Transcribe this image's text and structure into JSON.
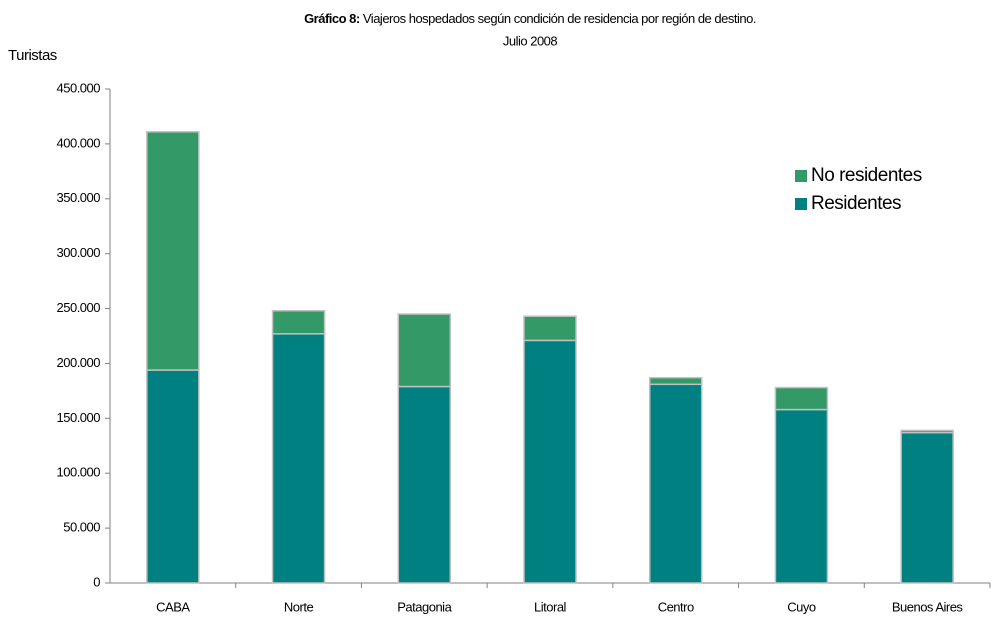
{
  "chart_data": {
    "type": "bar",
    "stacked": true,
    "title": {
      "label": "Gráfico 8:",
      "text": "Viajeros hospedados según condición de residencia por región de destino."
    },
    "subtitle": "Julio 2008",
    "y_label": "Turistas",
    "categories": [
      "CABA",
      "Norte",
      "Patagonia",
      "Litoral",
      "Centro",
      "Cuyo",
      "Buenos Aires"
    ],
    "series": [
      {
        "name": "Residentes",
        "color": "#008080",
        "values": [
          194000,
          227000,
          179000,
          221000,
          181000,
          158000,
          137000
        ]
      },
      {
        "name": "No residentes",
        "color": "#339966",
        "values": [
          217000,
          21000,
          66000,
          22000,
          6000,
          20000,
          2000
        ]
      }
    ],
    "ylim": [
      0,
      450000
    ],
    "yticks": [
      0,
      {
        "value": 50000,
        "label": "50.000"
      },
      {
        "value": 100000,
        "label": "100.000"
      },
      {
        "value": 150000,
        "label": "150.000"
      },
      {
        "value": 200000,
        "label": "200.000"
      },
      {
        "value": 250000,
        "label": "250.000"
      },
      {
        "value": 300000,
        "label": "300.000"
      },
      {
        "value": 350000,
        "label": "350.000"
      },
      {
        "value": 400000,
        "label": "400.000"
      },
      {
        "value": 450000,
        "label": "450.000"
      }
    ],
    "legend": "upper right",
    "grid": false
  }
}
